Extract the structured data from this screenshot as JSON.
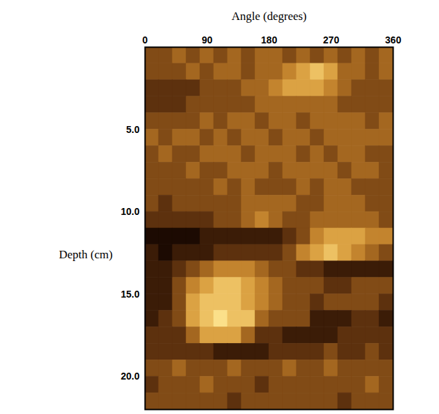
{
  "chart_data": {
    "type": "heatmap",
    "x_label": "Angle (degrees)",
    "y_label": "Depth (cm)",
    "xlim": [
      0,
      360
    ],
    "xticks": [
      0,
      90,
      180,
      270,
      360
    ],
    "ylim": [
      0,
      22
    ],
    "yticks": [
      {
        "value": 5,
        "label": "5.0"
      },
      {
        "value": 10,
        "label": "10.0"
      },
      {
        "value": 15,
        "label": "15.0"
      },
      {
        "value": 20,
        "label": "20.0"
      }
    ],
    "angle_bins": [
      0,
      20,
      40,
      60,
      80,
      100,
      120,
      140,
      160,
      180,
      200,
      220,
      240,
      260,
      280,
      300,
      320,
      340,
      360
    ],
    "depth_bins": [
      0,
      1,
      2,
      3,
      4,
      5,
      6,
      7,
      8,
      9,
      10,
      11,
      12,
      13,
      14,
      15,
      16,
      17,
      18,
      19,
      20,
      21,
      22
    ],
    "cells": [
      [
        4,
        4,
        5,
        4,
        5,
        4,
        5,
        4,
        5,
        5,
        4,
        5,
        4,
        5,
        4,
        5,
        4,
        5
      ],
      [
        4,
        4,
        4,
        5,
        4,
        5,
        5,
        4,
        5,
        5,
        6,
        7,
        8,
        7,
        5,
        5,
        4,
        5
      ],
      [
        3,
        3,
        3,
        3,
        4,
        4,
        4,
        5,
        5,
        6,
        7,
        7,
        7,
        6,
        5,
        4,
        4,
        4
      ],
      [
        3,
        3,
        3,
        4,
        4,
        4,
        4,
        4,
        5,
        5,
        5,
        5,
        5,
        5,
        4,
        4,
        4,
        4
      ],
      [
        4,
        4,
        4,
        4,
        5,
        4,
        5,
        5,
        4,
        5,
        5,
        4,
        5,
        5,
        5,
        5,
        4,
        5
      ],
      [
        5,
        4,
        5,
        5,
        4,
        5,
        4,
        5,
        5,
        4,
        5,
        5,
        4,
        5,
        5,
        5,
        5,
        5
      ],
      [
        4,
        5,
        4,
        4,
        5,
        5,
        5,
        4,
        5,
        5,
        5,
        4,
        5,
        4,
        5,
        5,
        4,
        4
      ],
      [
        4,
        4,
        4,
        5,
        4,
        4,
        5,
        5,
        5,
        4,
        5,
        5,
        5,
        5,
        4,
        5,
        5,
        4
      ],
      [
        4,
        4,
        4,
        4,
        4,
        5,
        4,
        5,
        4,
        4,
        4,
        5,
        4,
        5,
        5,
        4,
        4,
        4
      ],
      [
        4,
        3,
        4,
        4,
        4,
        4,
        4,
        5,
        5,
        5,
        5,
        4,
        4,
        5,
        5,
        5,
        4,
        4
      ],
      [
        3,
        3,
        3,
        3,
        3,
        4,
        4,
        5,
        6,
        5,
        4,
        4,
        5,
        5,
        5,
        5,
        5,
        4
      ],
      [
        1,
        1,
        1,
        1,
        2,
        2,
        2,
        2,
        2,
        2,
        3,
        4,
        6,
        7,
        7,
        7,
        6,
        6
      ],
      [
        2,
        1,
        2,
        2,
        2,
        3,
        3,
        3,
        3,
        3,
        4,
        6,
        7,
        8,
        7,
        6,
        5,
        4
      ],
      [
        2,
        2,
        3,
        4,
        5,
        6,
        6,
        6,
        5,
        4,
        4,
        3,
        3,
        2,
        2,
        2,
        2,
        2
      ],
      [
        2,
        2,
        4,
        6,
        7,
        8,
        8,
        7,
        6,
        5,
        4,
        4,
        4,
        3,
        3,
        4,
        4,
        4
      ],
      [
        2,
        2,
        4,
        7,
        8,
        8,
        8,
        7,
        6,
        5,
        4,
        4,
        3,
        4,
        4,
        4,
        4,
        3
      ],
      [
        2,
        3,
        4,
        7,
        8,
        9,
        8,
        8,
        5,
        4,
        4,
        4,
        2,
        2,
        2,
        3,
        3,
        2
      ],
      [
        3,
        3,
        3,
        5,
        7,
        7,
        7,
        5,
        3,
        3,
        2,
        2,
        2,
        2,
        3,
        3,
        3,
        3
      ],
      [
        3,
        3,
        3,
        3,
        3,
        2,
        2,
        2,
        2,
        3,
        3,
        3,
        3,
        4,
        3,
        3,
        4,
        3
      ],
      [
        4,
        4,
        5,
        4,
        4,
        4,
        5,
        4,
        4,
        4,
        5,
        4,
        4,
        5,
        4,
        4,
        4,
        4
      ],
      [
        3,
        4,
        4,
        4,
        5,
        4,
        4,
        4,
        3,
        4,
        4,
        4,
        4,
        4,
        4,
        4,
        5,
        4
      ],
      [
        4,
        4,
        4,
        4,
        4,
        4,
        3,
        4,
        4,
        4,
        4,
        4,
        4,
        4,
        3,
        4,
        4,
        4
      ]
    ]
  }
}
